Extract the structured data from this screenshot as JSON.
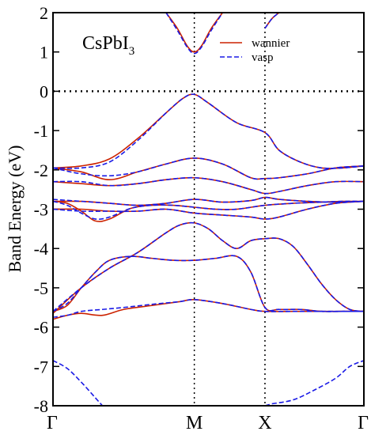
{
  "chart_data": {
    "type": "line",
    "title_main": "CsPbI",
    "title_sub": "3",
    "xlabel": "",
    "ylabel": "Band Energy (eV)",
    "ylim": [
      -8,
      2
    ],
    "yticks": [
      -8,
      -7,
      -6,
      -5,
      -4,
      -3,
      -2,
      -1,
      0,
      1,
      2
    ],
    "ytick_labels": [
      "-8",
      "-7",
      "-6",
      "-5",
      "-4",
      "-3",
      "-2",
      "-1",
      "0",
      "1",
      "2"
    ],
    "x_kpoints": [
      {
        "label": "Γ",
        "x": 0
      },
      {
        "label": "M",
        "x": 1
      },
      {
        "label": "X",
        "x": 1.5
      },
      {
        "label": "Γ",
        "x": 2.2
      }
    ],
    "grid": "vertical dotted lines at M and X; horizontal dotted line at 0",
    "fermi_level": 0,
    "legend": {
      "placement": "top-right",
      "entries": [
        "wannier",
        "vasp"
      ]
    },
    "colors": {
      "wannier": "#cc2200",
      "vasp": "#1a1ae6"
    },
    "series": [
      {
        "name": "wannier",
        "bands": [
          {
            "x": [
              0.8,
              0.88,
              0.95,
              1.0,
              1.05,
              1.12,
              1.2
            ],
            "y": [
              2.0,
              1.6,
              1.15,
              1.0,
              1.15,
              1.6,
              2.0
            ]
          },
          {
            "x": [
              1.5,
              1.55,
              1.6
            ],
            "y": [
              1.6,
              1.85,
              2.0
            ]
          },
          {
            "x": [
              0,
              0.2,
              0.4,
              0.6,
              0.8,
              0.92,
              1.0,
              1.1,
              1.3,
              1.5,
              1.6,
              1.75,
              1.9,
              2.05,
              2.2
            ],
            "y": [
              -1.95,
              -1.9,
              -1.72,
              -1.2,
              -0.55,
              -0.18,
              -0.08,
              -0.3,
              -0.8,
              -1.05,
              -1.5,
              -1.8,
              -1.95,
              -1.95,
              -1.9
            ]
          },
          {
            "x": [
              0,
              0.2,
              0.4,
              0.6,
              0.8,
              1.0,
              1.2,
              1.4,
              1.5,
              1.6,
              1.8,
              2.0,
              2.2
            ],
            "y": [
              -1.95,
              -2.05,
              -2.25,
              -2.05,
              -1.85,
              -1.7,
              -1.85,
              -2.2,
              -2.22,
              -2.2,
              -2.1,
              -1.95,
              -1.9
            ]
          },
          {
            "x": [
              0,
              0.2,
              0.4,
              0.6,
              0.8,
              1.0,
              1.2,
              1.4,
              1.5,
              1.6,
              1.8,
              2.0,
              2.2
            ],
            "y": [
              -2.3,
              -2.35,
              -2.4,
              -2.35,
              -2.25,
              -2.2,
              -2.3,
              -2.5,
              -2.6,
              -2.55,
              -2.4,
              -2.3,
              -2.3
            ]
          },
          {
            "x": [
              0,
              0.2,
              0.4,
              0.6,
              0.8,
              1.0,
              1.2,
              1.4,
              1.5,
              1.6,
              1.8,
              2.0,
              2.2
            ],
            "y": [
              -2.8,
              -2.8,
              -2.85,
              -2.9,
              -2.85,
              -2.75,
              -2.82,
              -2.78,
              -2.7,
              -2.75,
              -2.8,
              -2.82,
              -2.8
            ]
          },
          {
            "x": [
              0,
              0.1,
              0.2,
              0.3,
              0.4,
              0.55,
              0.7,
              0.85,
              1.0,
              1.15,
              1.3,
              1.5,
              1.7,
              1.9,
              2.05,
              2.2
            ],
            "y": [
              -2.8,
              -2.85,
              -3.05,
              -3.3,
              -3.25,
              -2.98,
              -2.9,
              -2.9,
              -2.95,
              -3.0,
              -3.0,
              -2.9,
              -2.85,
              -2.82,
              -2.8,
              -2.8
            ]
          },
          {
            "x": [
              0,
              0.2,
              0.4,
              0.6,
              0.8,
              1.0,
              1.2,
              1.4,
              1.5,
              1.6,
              1.8,
              2.0,
              2.2
            ],
            "y": [
              -3.0,
              -3.0,
              -3.05,
              -3.05,
              -3.0,
              -3.1,
              -3.15,
              -3.2,
              -3.25,
              -3.2,
              -3.0,
              -2.85,
              -2.8
            ]
          },
          {
            "x": [
              0,
              0.1,
              0.2,
              0.3,
              0.4,
              0.55,
              0.7,
              0.85,
              1.0,
              1.15,
              1.3,
              1.4,
              1.5,
              1.6,
              1.75,
              1.9,
              2.05,
              2.2
            ],
            "y": [
              -5.6,
              -5.45,
              -5.0,
              -4.6,
              -4.3,
              -4.2,
              -4.25,
              -4.3,
              -4.3,
              -4.25,
              -4.2,
              -4.6,
              -5.5,
              -5.55,
              -5.55,
              -5.6,
              -5.6,
              -5.6
            ]
          },
          {
            "x": [
              0,
              0.2,
              0.4,
              0.6,
              0.8,
              0.9,
              1.0,
              1.1,
              1.2,
              1.3,
              1.4,
              1.5,
              1.6,
              1.7,
              1.8,
              1.9,
              2.0,
              2.1,
              2.2
            ],
            "y": [
              -5.65,
              -5.0,
              -4.5,
              -4.1,
              -3.6,
              -3.4,
              -3.35,
              -3.5,
              -3.8,
              -4.0,
              -3.8,
              -3.75,
              -3.75,
              -3.95,
              -4.4,
              -4.9,
              -5.3,
              -5.55,
              -5.6
            ]
          },
          {
            "x": [
              0,
              0.1,
              0.2,
              0.35,
              0.5,
              0.7,
              0.9,
              1.0,
              1.2,
              1.4,
              1.5,
              1.7,
              1.9,
              2.1,
              2.2
            ],
            "y": [
              -5.8,
              -5.7,
              -5.65,
              -5.7,
              -5.55,
              -5.45,
              -5.35,
              -5.3,
              -5.4,
              -5.55,
              -5.6,
              -5.6,
              -5.6,
              -5.6,
              -5.6
            ]
          }
        ]
      },
      {
        "name": "vasp",
        "bands": [
          {
            "x": [
              0.8,
              0.88,
              0.95,
              1.0,
              1.05,
              1.12,
              1.2
            ],
            "y": [
              2.0,
              1.55,
              1.12,
              0.96,
              1.12,
              1.55,
              2.0
            ]
          },
          {
            "x": [
              1.5,
              1.55,
              1.6
            ],
            "y": [
              1.6,
              1.85,
              2.0
            ]
          },
          {
            "x": [
              0,
              0.2,
              0.4,
              0.6,
              0.8,
              0.92,
              1.0,
              1.1,
              1.3,
              1.5,
              1.6,
              1.75,
              1.9,
              2.05,
              2.2
            ],
            "y": [
              -1.95,
              -1.95,
              -1.8,
              -1.25,
              -0.55,
              -0.18,
              -0.08,
              -0.3,
              -0.8,
              -1.05,
              -1.5,
              -1.8,
              -1.95,
              -1.95,
              -1.9
            ]
          },
          {
            "x": [
              0,
              0.2,
              0.4,
              0.6,
              0.8,
              1.0,
              1.2,
              1.4,
              1.5,
              1.6,
              1.8,
              2.0,
              2.2
            ],
            "y": [
              -1.95,
              -2.1,
              -2.15,
              -2.05,
              -1.85,
              -1.7,
              -1.85,
              -2.2,
              -2.22,
              -2.2,
              -2.1,
              -1.95,
              -1.9
            ]
          },
          {
            "x": [
              0,
              0.2,
              0.4,
              0.6,
              0.8,
              1.0,
              1.2,
              1.4,
              1.5,
              1.6,
              1.8,
              2.0,
              2.2
            ],
            "y": [
              -2.3,
              -2.3,
              -2.4,
              -2.35,
              -2.25,
              -2.2,
              -2.3,
              -2.5,
              -2.6,
              -2.55,
              -2.4,
              -2.3,
              -2.3
            ]
          },
          {
            "x": [
              0,
              0.2,
              0.4,
              0.6,
              0.8,
              1.0,
              1.2,
              1.4,
              1.5,
              1.6,
              1.8,
              2.0,
              2.2
            ],
            "y": [
              -2.75,
              -2.8,
              -2.85,
              -2.9,
              -2.85,
              -2.75,
              -2.82,
              -2.78,
              -2.7,
              -2.75,
              -2.8,
              -2.82,
              -2.8
            ]
          },
          {
            "x": [
              0,
              0.1,
              0.2,
              0.3,
              0.4,
              0.55,
              0.7,
              0.85,
              1.0,
              1.15,
              1.3,
              1.5,
              1.7,
              1.9,
              2.05,
              2.2
            ],
            "y": [
              -2.8,
              -2.9,
              -3.1,
              -3.25,
              -3.2,
              -2.98,
              -2.9,
              -2.9,
              -2.95,
              -3.0,
              -3.0,
              -2.9,
              -2.85,
              -2.82,
              -2.8,
              -2.8
            ]
          },
          {
            "x": [
              0,
              0.2,
              0.4,
              0.6,
              0.8,
              1.0,
              1.2,
              1.4,
              1.5,
              1.6,
              1.8,
              2.0,
              2.2
            ],
            "y": [
              -3.0,
              -3.05,
              -3.05,
              -3.05,
              -3.0,
              -3.1,
              -3.15,
              -3.2,
              -3.25,
              -3.2,
              -3.0,
              -2.85,
              -2.8
            ]
          },
          {
            "x": [
              0,
              0.1,
              0.2,
              0.3,
              0.4,
              0.55,
              0.7,
              0.85,
              1.0,
              1.15,
              1.3,
              1.4,
              1.5,
              1.6,
              1.75,
              1.9,
              2.05,
              2.2
            ],
            "y": [
              -5.6,
              -5.4,
              -5.0,
              -4.6,
              -4.3,
              -4.2,
              -4.25,
              -4.3,
              -4.3,
              -4.25,
              -4.2,
              -4.6,
              -5.5,
              -5.55,
              -5.55,
              -5.6,
              -5.6,
              -5.6
            ]
          },
          {
            "x": [
              0,
              0.2,
              0.4,
              0.6,
              0.8,
              0.9,
              1.0,
              1.1,
              1.2,
              1.3,
              1.4,
              1.5,
              1.6,
              1.7,
              1.8,
              1.9,
              2.0,
              2.1,
              2.2
            ],
            "y": [
              -5.6,
              -5.0,
              -4.5,
              -4.1,
              -3.6,
              -3.4,
              -3.35,
              -3.5,
              -3.8,
              -4.0,
              -3.8,
              -3.75,
              -3.75,
              -3.95,
              -4.4,
              -4.9,
              -5.3,
              -5.55,
              -5.6
            ]
          },
          {
            "x": [
              0,
              0.1,
              0.2,
              0.35,
              0.5,
              0.7,
              0.9,
              1.0,
              1.2,
              1.4,
              1.5,
              1.7,
              1.9,
              2.1,
              2.2
            ],
            "y": [
              -5.75,
              -5.7,
              -5.6,
              -5.55,
              -5.5,
              -5.42,
              -5.35,
              -5.3,
              -5.4,
              -5.55,
              -5.6,
              -5.6,
              -5.6,
              -5.6,
              -5.6
            ]
          },
          {
            "x": [
              0,
              0.1,
              0.2,
              0.3,
              0.35
            ],
            "y": [
              -6.85,
              -7.05,
              -7.4,
              -7.8,
              -8.0
            ]
          },
          {
            "x": [
              1.5,
              1.55
            ],
            "y": [
              -8.0,
              -7.95
            ]
          },
          {
            "x": [
              1.55,
              1.7,
              1.85,
              2.0,
              2.1,
              2.2
            ],
            "y": [
              -7.95,
              -7.85,
              -7.6,
              -7.3,
              -7.0,
              -6.85
            ]
          }
        ]
      }
    ]
  }
}
